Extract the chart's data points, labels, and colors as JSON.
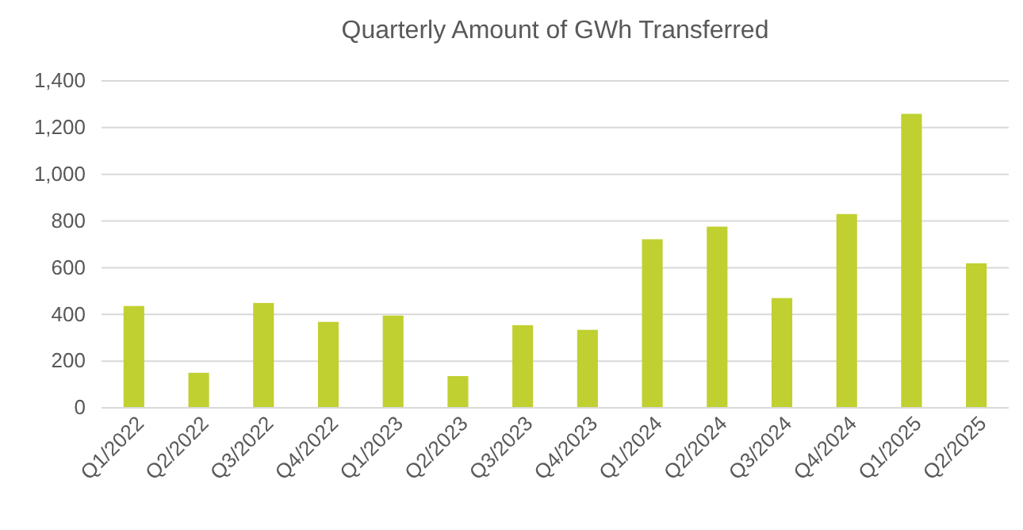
{
  "chart_data": {
    "type": "bar",
    "title": "Quarterly Amount of GWh Transferred",
    "categories": [
      "Q1/2022",
      "Q2/2022",
      "Q3/2022",
      "Q4/2022",
      "Q1/2023",
      "Q2/2023",
      "Q3/2023",
      "Q4/2023",
      "Q1/2024",
      "Q2/2024",
      "Q3/2024",
      "Q4/2024",
      "Q1/2025",
      "Q2/2025"
    ],
    "values": [
      436,
      150,
      449,
      368,
      395,
      136,
      354,
      334,
      722,
      776,
      470,
      830,
      1259,
      619
    ],
    "color": "#c0d030",
    "ylim": [
      0,
      1400
    ],
    "yticks": [
      0,
      {
        "value": 200,
        "label": "200"
      },
      {
        "value": 400,
        "label": "400"
      },
      {
        "value": 600,
        "label": "600"
      },
      {
        "value": 800,
        "label": "800"
      },
      {
        "value": 1000,
        "label": "1,000"
      },
      {
        "value": 1200,
        "label": "1,200"
      },
      {
        "value": 1400,
        "label": "1,400"
      }
    ],
    "grid": "y"
  }
}
